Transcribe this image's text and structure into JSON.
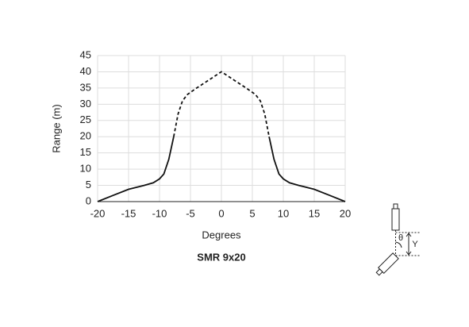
{
  "chart_data": {
    "type": "line",
    "title": "SMR 9x20",
    "x_label": "Degrees",
    "y_label": "Range (m)",
    "x": [
      -20,
      -17.5,
      -15,
      -12.5,
      -11,
      -10,
      -9.3,
      -8.5,
      -7.7,
      -7,
      -6.3,
      -5.5,
      -4,
      -2,
      0,
      2,
      4,
      5.5,
      6.3,
      7,
      7.7,
      8.5,
      9.3,
      10,
      11,
      12.5,
      15,
      17.5,
      20
    ],
    "series": [
      {
        "color": "#111111",
        "dashed": false,
        "values": [
          0,
          1.9,
          3.8,
          5,
          5.8,
          7,
          8.5,
          13,
          20,
          null,
          null,
          null,
          null,
          null,
          null,
          null,
          null,
          null,
          null,
          null,
          20,
          13,
          8.5,
          7,
          5.8,
          5,
          3.8,
          1.9,
          0
        ]
      },
      {
        "color": "#111111",
        "dashed": true,
        "values": [
          null,
          null,
          null,
          null,
          null,
          null,
          null,
          null,
          20,
          27,
          31,
          33,
          35,
          37.5,
          40,
          37.5,
          35,
          33,
          31,
          27,
          20,
          null,
          null,
          null,
          null,
          null,
          null,
          null,
          null
        ]
      }
    ],
    "xlim": [
      -20,
      20
    ],
    "xticks": [
      -20,
      -15,
      -10,
      -5,
      0,
      5,
      10,
      15,
      20
    ],
    "ylim": [
      0,
      45
    ],
    "yticks": [
      0,
      5,
      10,
      15,
      20,
      25,
      30,
      35,
      40,
      45
    ],
    "grid": true
  },
  "icon": {
    "angle_label": "θ",
    "offset_label": "Y"
  }
}
